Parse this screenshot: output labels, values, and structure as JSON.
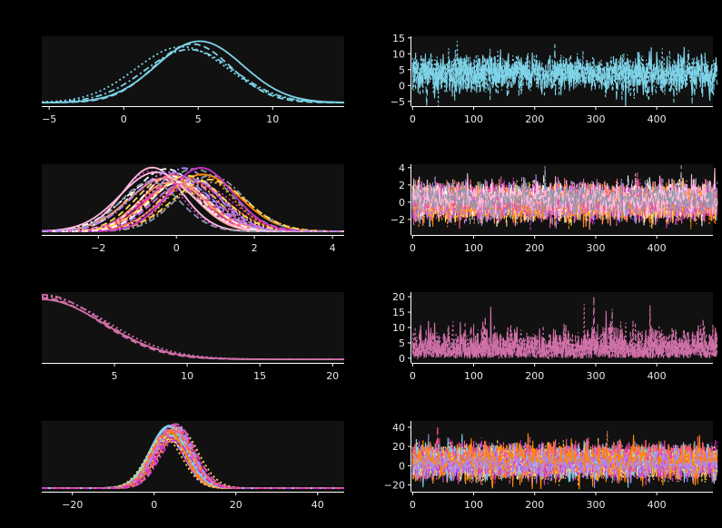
{
  "figure": {
    "background": "#000000",
    "panel_background": "#111111",
    "axis_color": "#ffffff",
    "tick_label_color": "#e8e8e8"
  },
  "palette": {
    "cyan": "#7ed3e8",
    "multi": [
      "#ff5577",
      "#ffdd55",
      "#cc33cc",
      "#ffffff",
      "#ff9966",
      "#aa88ff",
      "#ff8800",
      "#dd55aa",
      "#ffbbdd",
      "#8899aa"
    ],
    "pink": "#d070a8",
    "multi4": [
      "#7ed3e8",
      "#ff5577",
      "#ffdd55",
      "#cc33cc",
      "#ff8800",
      "#aa88ff",
      "#ff9966",
      "#dd55aa"
    ]
  },
  "chart_data": [
    {
      "type": "line",
      "kind": "kde",
      "row": 0,
      "xlim": [
        -5.5,
        14.8
      ],
      "ylim": [
        0,
        1
      ],
      "xticks": [
        -5,
        0,
        5,
        10
      ],
      "xtick_labels": [
        "−5",
        "0",
        "5",
        "10"
      ],
      "series": [
        {
          "style": "solid",
          "color": "cyan",
          "mu": 5.1,
          "sd": 2.9
        },
        {
          "style": "dashed",
          "color": "cyan",
          "mu": 4.6,
          "sd": 2.6
        },
        {
          "style": "dotted",
          "color": "cyan",
          "mu": 3.9,
          "sd": 3.1
        },
        {
          "style": "dashdot",
          "color": "cyan",
          "mu": 4.4,
          "sd": 3.0
        }
      ]
    },
    {
      "type": "line",
      "kind": "trace",
      "row": 0,
      "xlim": [
        -2,
        492
      ],
      "ylim": [
        -6.5,
        15.5
      ],
      "xticks": [
        0,
        100,
        200,
        300,
        400
      ],
      "xtick_labels": [
        "0",
        "100",
        "200",
        "300",
        "400"
      ],
      "yticks": [
        -5,
        0,
        5,
        10,
        15
      ],
      "ytick_labels": [
        "−5",
        "0",
        "5",
        "10",
        "15"
      ],
      "n_draws": 500,
      "n_chains": 4,
      "colors": [
        "cyan"
      ],
      "center": 4.2,
      "spread": 3.0
    },
    {
      "type": "line",
      "kind": "kde",
      "row": 1,
      "xlim": [
        -3.45,
        4.3
      ],
      "ylim": [
        0,
        1
      ],
      "xticks": [
        -2,
        0,
        2,
        4
      ],
      "xtick_labels": [
        "−2",
        "0",
        "2",
        "4"
      ],
      "n_series": 36,
      "colors": [
        "multi"
      ],
      "center": 0.1,
      "center_spread": 0.45,
      "sd": 0.85
    },
    {
      "type": "line",
      "kind": "trace",
      "row": 1,
      "xlim": [
        -2,
        492
      ],
      "ylim": [
        -3.8,
        4.4
      ],
      "xticks": [
        0,
        100,
        200,
        300,
        400
      ],
      "xtick_labels": [
        "0",
        "100",
        "200",
        "300",
        "400"
      ],
      "yticks": [
        -2,
        0,
        2,
        4
      ],
      "ytick_labels": [
        "−2",
        "0",
        "2",
        "4"
      ],
      "n_draws": 500,
      "n_chains": 30,
      "colors": [
        "multi"
      ],
      "center": 0.1,
      "spread": 0.9
    },
    {
      "type": "line",
      "kind": "kde",
      "row": 2,
      "shape": "halfnormal",
      "xlim": [
        0,
        20.8
      ],
      "ylim": [
        0,
        1
      ],
      "xticks": [
        5,
        10,
        15,
        20
      ],
      "xtick_labels": [
        "5",
        "10",
        "15",
        "20"
      ],
      "series": [
        {
          "style": "solid",
          "color": "pink",
          "scale": 4.2
        },
        {
          "style": "dashed",
          "color": "pink",
          "scale": 4.0
        },
        {
          "style": "dotted",
          "color": "pink",
          "scale": 4.4
        },
        {
          "style": "dashdot",
          "color": "pink",
          "scale": 4.1
        }
      ]
    },
    {
      "type": "line",
      "kind": "trace",
      "row": 2,
      "xlim": [
        -2,
        492
      ],
      "ylim": [
        -1.5,
        21.5
      ],
      "xticks": [
        0,
        100,
        200,
        300,
        400
      ],
      "xtick_labels": [
        "0",
        "100",
        "200",
        "300",
        "400"
      ],
      "yticks": [
        0,
        5,
        10,
        15,
        20
      ],
      "ytick_labels": [
        "0",
        "5",
        "10",
        "15",
        "20"
      ],
      "n_draws": 500,
      "n_chains": 4,
      "colors": [
        "pink"
      ],
      "shape": "halfnormal",
      "scale": 4.2
    },
    {
      "type": "line",
      "kind": "kde",
      "row": 3,
      "xlim": [
        -27.5,
        46.5
      ],
      "ylim": [
        0,
        1
      ],
      "xticks": [
        -20,
        0,
        20,
        40
      ],
      "xtick_labels": [
        "−20",
        "0",
        "20",
        "40"
      ],
      "n_series": 36,
      "colors": [
        "multi4"
      ],
      "center": 4.5,
      "center_spread": 0.9,
      "sd": 4.3
    },
    {
      "type": "line",
      "kind": "trace",
      "row": 3,
      "xlim": [
        -2,
        492
      ],
      "ylim": [
        -27,
        46.5
      ],
      "xticks": [
        0,
        100,
        200,
        300,
        400
      ],
      "xtick_labels": [
        "0",
        "100",
        "200",
        "300",
        "400"
      ],
      "yticks": [
        -20,
        0,
        20,
        40
      ],
      "ytick_labels": [
        "−20",
        "0",
        "20",
        "40"
      ],
      "n_draws": 500,
      "n_chains": 30,
      "colors": [
        "multi4"
      ],
      "center": 4.5,
      "spread": 7.5
    }
  ]
}
